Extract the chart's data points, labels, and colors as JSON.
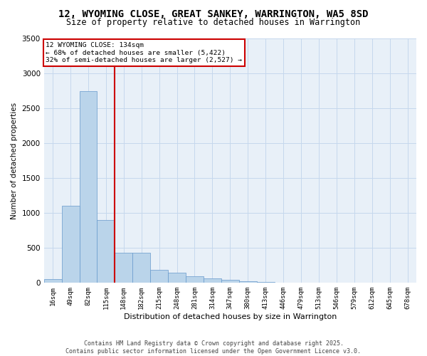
{
  "title": "12, WYOMING CLOSE, GREAT SANKEY, WARRINGTON, WA5 8SD",
  "subtitle": "Size of property relative to detached houses in Warrington",
  "xlabel": "Distribution of detached houses by size in Warrington",
  "ylabel": "Number of detached properties",
  "footer_line1": "Contains HM Land Registry data © Crown copyright and database right 2025.",
  "footer_line2": "Contains public sector information licensed under the Open Government Licence v3.0.",
  "categories": [
    "16sqm",
    "49sqm",
    "82sqm",
    "115sqm",
    "148sqm",
    "182sqm",
    "215sqm",
    "248sqm",
    "281sqm",
    "314sqm",
    "347sqm",
    "380sqm",
    "413sqm",
    "446sqm",
    "479sqm",
    "513sqm",
    "546sqm",
    "579sqm",
    "612sqm",
    "645sqm",
    "678sqm"
  ],
  "values": [
    55,
    1100,
    2750,
    900,
    430,
    430,
    190,
    150,
    100,
    60,
    40,
    25,
    10,
    5,
    3,
    2,
    1,
    1,
    0,
    0,
    0
  ],
  "bar_color": "#bad4ea",
  "bar_edge_color": "#6699cc",
  "grid_color": "#c5d8ed",
  "bg_color": "#e8f0f8",
  "vline_color": "#cc0000",
  "vline_x": 3.5,
  "annotation_title": "12 WYOMING CLOSE: 134sqm",
  "annotation_line1": "← 68% of detached houses are smaller (5,422)",
  "annotation_line2": "32% of semi-detached houses are larger (2,527) →",
  "annotation_box_color": "#cc0000",
  "ylim": [
    0,
    3500
  ],
  "yticks": [
    0,
    500,
    1000,
    1500,
    2000,
    2500,
    3000,
    3500
  ]
}
